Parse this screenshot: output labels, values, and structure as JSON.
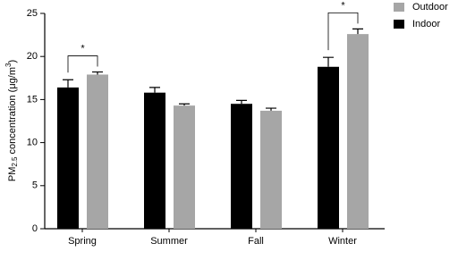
{
  "chart_data": {
    "type": "bar",
    "ylabel": {
      "base": "PM",
      "sub": "2.5",
      "mid": " concentration (μg/m",
      "sup": "3",
      "end": ")"
    },
    "categories": [
      "Spring",
      "Summer",
      "Fall",
      "Winter"
    ],
    "series": [
      {
        "name": "Indoor",
        "color": "#000000",
        "values": [
          16.4,
          15.8,
          14.5,
          18.8
        ],
        "errors": [
          0.9,
          0.6,
          0.4,
          1.1
        ]
      },
      {
        "name": "Outdoor",
        "color": "#a6a6a6",
        "values": [
          17.9,
          14.3,
          13.7,
          22.6
        ],
        "errors": [
          0.3,
          0.2,
          0.3,
          0.6
        ]
      }
    ],
    "significance": [
      "*",
      null,
      null,
      "*"
    ],
    "ylim": [
      0,
      25
    ],
    "yticks": [
      0,
      5,
      10,
      15,
      20,
      25
    ],
    "grid": false,
    "legend": "top-right"
  }
}
